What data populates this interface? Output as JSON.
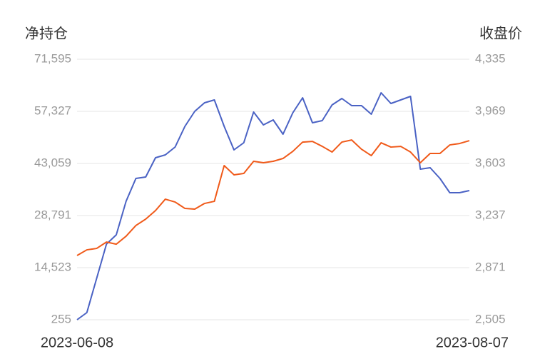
{
  "chart_data": {
    "type": "line",
    "y_title": "净持仓",
    "y2_title": "收盘价",
    "categories": [
      "2023-06-08",
      null,
      null,
      null,
      null,
      null,
      null,
      null,
      null,
      null,
      null,
      null,
      null,
      null,
      null,
      null,
      null,
      null,
      null,
      null,
      null,
      null,
      null,
      null,
      null,
      null,
      null,
      null,
      null,
      null,
      null,
      null,
      null,
      null,
      null,
      null,
      null,
      null,
      null,
      null,
      "2023-08-07"
    ],
    "ylim": [
      255,
      71595
    ],
    "yticks": [
      255,
      {
        "value": 14523,
        "label": "14,523"
      },
      {
        "value": 28791,
        "label": "28,791"
      },
      {
        "value": 43059,
        "label": "43,059"
      },
      {
        "value": 57327,
        "label": "57,327"
      },
      {
        "value": 71595,
        "label": "71,595"
      }
    ],
    "y2lim": [
      2505,
      4335
    ],
    "y2ticks": [
      {
        "value": 2505,
        "label": "2,505"
      },
      {
        "value": 2871,
        "label": "2,871"
      },
      {
        "value": 3237,
        "label": "3,237"
      },
      {
        "value": 3603,
        "label": "3,603"
      },
      {
        "value": 3969,
        "label": "3,969"
      },
      {
        "value": 4335,
        "label": "4,335"
      }
    ],
    "grid": true,
    "series": [
      {
        "name": "净持仓",
        "color": "#4a62c4",
        "axis": "y",
        "values": [
          255,
          2210,
          11591,
          20973,
          23514,
          32700,
          38955,
          39346,
          44623,
          45405,
          47555,
          53223,
          57327,
          59673,
          60455,
          53223,
          46773,
          48727,
          57132,
          53614,
          54982,
          51073,
          56936,
          61041,
          54200,
          54786,
          59086,
          60845,
          58891,
          58891,
          56545,
          62409,
          59477,
          60455,
          61432,
          41495,
          41886,
          38955,
          35045,
          35045,
          35632
        ]
      },
      {
        "name": "收盘价",
        "color": "#f05a1a",
        "axis": "y2",
        "values": [
          2956,
          2996,
          3006,
          3051,
          3036,
          3092,
          3167,
          3212,
          3272,
          3352,
          3332,
          3287,
          3282,
          3322,
          3337,
          3588,
          3523,
          3533,
          3618,
          3608,
          3618,
          3638,
          3688,
          3753,
          3758,
          3723,
          3683,
          3753,
          3768,
          3703,
          3658,
          3748,
          3718,
          3723,
          3683,
          3608,
          3673,
          3673,
          3733,
          3743,
          3763
        ]
      }
    ]
  }
}
